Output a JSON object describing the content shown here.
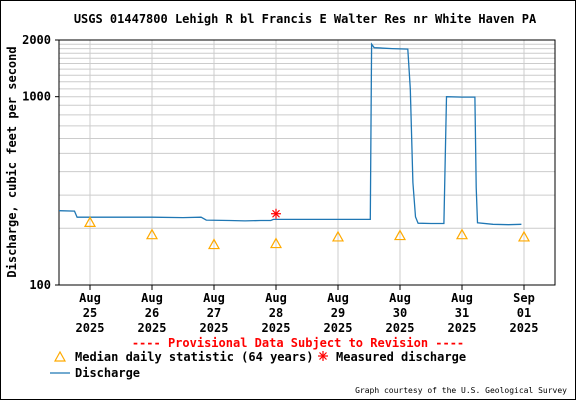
{
  "chart_data": {
    "type": "line",
    "title": "USGS 01447800 Lehigh R bl Francis E Walter Res nr White Haven PA",
    "ylabel": "Discharge, cubic feet per second",
    "y_scale": "log",
    "ylim": [
      100,
      2000
    ],
    "y_tick_labels": [
      "100",
      "1000",
      "2000"
    ],
    "xlim": [
      "2025-08-24T12:00",
      "2025-09-01T12:00"
    ],
    "x_ticks": [
      {
        "lines": [
          "Aug",
          "25",
          "2025"
        ],
        "x": "2025-08-25T00:00"
      },
      {
        "lines": [
          "Aug",
          "26",
          "2025"
        ],
        "x": "2025-08-26T00:00"
      },
      {
        "lines": [
          "Aug",
          "27",
          "2025"
        ],
        "x": "2025-08-27T00:00"
      },
      {
        "lines": [
          "Aug",
          "28",
          "2025"
        ],
        "x": "2025-08-28T00:00"
      },
      {
        "lines": [
          "Aug",
          "29",
          "2025"
        ],
        "x": "2025-08-29T00:00"
      },
      {
        "lines": [
          "Aug",
          "30",
          "2025"
        ],
        "x": "2025-08-30T00:00"
      },
      {
        "lines": [
          "Aug",
          "31",
          "2025"
        ],
        "x": "2025-08-31T00:00"
      },
      {
        "lines": [
          "Sep",
          "01",
          "2025"
        ],
        "x": "2025-09-01T00:00"
      }
    ],
    "series": [
      {
        "name": "Discharge",
        "color": "#1f77b4",
        "points": [
          [
            "2025-08-24T12:00",
            248
          ],
          [
            "2025-08-24T18:00",
            247
          ],
          [
            "2025-08-24T19:00",
            229
          ],
          [
            "2025-08-25T12:00",
            229
          ],
          [
            "2025-08-26T00:00",
            229
          ],
          [
            "2025-08-26T12:00",
            228
          ],
          [
            "2025-08-26T19:00",
            229
          ],
          [
            "2025-08-26T21:00",
            221
          ],
          [
            "2025-08-27T06:00",
            220
          ],
          [
            "2025-08-27T12:00",
            219
          ],
          [
            "2025-08-27T18:00",
            220
          ],
          [
            "2025-08-27T22:00",
            220
          ],
          [
            "2025-08-27T23:00",
            223
          ],
          [
            "2025-08-28T06:00",
            223
          ],
          [
            "2025-08-29T06:00",
            223
          ],
          [
            "2025-08-29T12:00",
            223
          ],
          [
            "2025-08-29T12:30",
            223
          ],
          [
            "2025-08-29T13:00",
            1900
          ],
          [
            "2025-08-29T14:00",
            1820
          ],
          [
            "2025-08-29T21:00",
            1800
          ],
          [
            "2025-08-30T03:00",
            1790
          ],
          [
            "2025-08-30T04:00",
            1100
          ],
          [
            "2025-08-30T05:00",
            350
          ],
          [
            "2025-08-30T06:00",
            230
          ],
          [
            "2025-08-30T07:00",
            213
          ],
          [
            "2025-08-30T12:00",
            212
          ],
          [
            "2025-08-30T17:00",
            212
          ],
          [
            "2025-08-30T18:00",
            1000
          ],
          [
            "2025-08-31T00:00",
            995
          ],
          [
            "2025-08-31T05:00",
            995
          ],
          [
            "2025-08-31T05:30",
            330
          ],
          [
            "2025-08-31T06:00",
            214
          ],
          [
            "2025-08-31T12:00",
            210
          ],
          [
            "2025-08-31T18:00",
            209
          ],
          [
            "2025-08-31T23:00",
            210
          ]
        ]
      }
    ],
    "median_daily": {
      "name": "Median daily statistic (64 years)",
      "color": "#ffaa00",
      "points": [
        [
          "2025-08-25T00:00",
          215
        ],
        [
          "2025-08-26T00:00",
          185
        ],
        [
          "2025-08-27T00:00",
          164
        ],
        [
          "2025-08-28T00:00",
          166
        ],
        [
          "2025-08-29T00:00",
          180
        ],
        [
          "2025-08-30T00:00",
          183
        ],
        [
          "2025-08-31T00:00",
          185
        ],
        [
          "2025-09-01T00:00",
          180
        ]
      ]
    },
    "measured": {
      "name": "Measured discharge",
      "color": "#ff0000",
      "points": [
        [
          "2025-08-28T00:00",
          239
        ]
      ]
    },
    "grid": true,
    "legend_position": "bottom-left"
  },
  "page": {
    "revision_notice": "---- Provisional Data Subject to Revision ----",
    "legend": {
      "median_label": "Median daily statistic (64 years)",
      "measured_label": "Measured discharge",
      "discharge_label": "Discharge"
    },
    "credit": "Graph courtesy of the U.S. Geological Survey"
  }
}
